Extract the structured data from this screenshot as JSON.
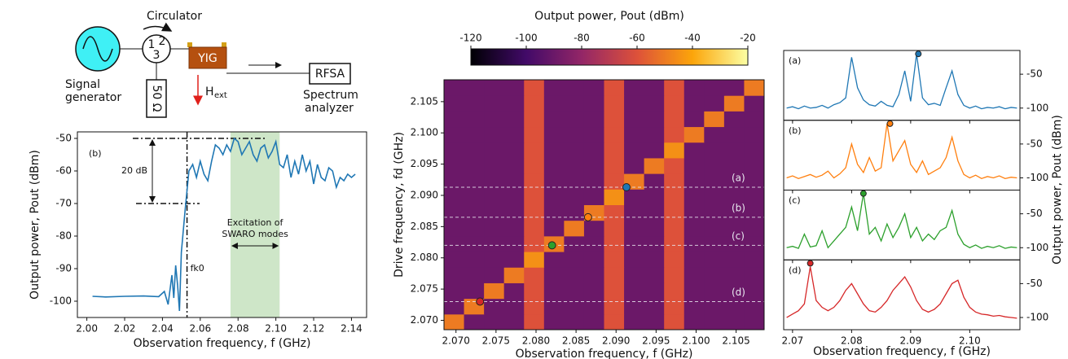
{
  "diagram": {
    "circulator": "Circulator",
    "signal_1": "Signal",
    "signal_2": "generator",
    "port_1": "1",
    "port_2": "2",
    "port_3": "3",
    "yig": "YIG",
    "load": "50 Ω",
    "field": "H",
    "field_sub": "ext",
    "rfsa": "RFSA",
    "analyzer_1": "Spectrum",
    "analyzer_2": "analyzer"
  },
  "chart_data": [
    {
      "type": "line",
      "panel_label": "(b)",
      "xlabel": "Observation frequency, f (GHz)",
      "ylabel": "Output power, Pout (dBm)",
      "xlim": [
        1.995,
        2.148
      ],
      "ylim": [
        -105,
        -48
      ],
      "xticks": [
        {
          "value": 2.0,
          "label": "2.00"
        },
        2.02,
        2.04,
        2.06,
        2.08,
        {
          "value": 2.1,
          "label": "2.10"
        },
        2.12,
        2.14
      ],
      "yticks": [
        -100,
        -90,
        -80,
        -70,
        -60,
        -50
      ],
      "color": "#1f77b4",
      "x": [
        2.003,
        2.01,
        2.02,
        2.03,
        2.038,
        2.041,
        2.043,
        2.045,
        2.046,
        2.047,
        2.048,
        2.049,
        2.05,
        2.052,
        2.054,
        2.056,
        2.058,
        2.06,
        2.062,
        2.064,
        2.066,
        2.068,
        2.07,
        2.072,
        2.074,
        2.076,
        2.078,
        2.08,
        2.082,
        2.084,
        2.086,
        2.088,
        2.09,
        2.092,
        2.094,
        2.096,
        2.098,
        2.1,
        2.102,
        2.104,
        2.106,
        2.108,
        2.11,
        2.112,
        2.114,
        2.116,
        2.118,
        2.12,
        2.122,
        2.124,
        2.126,
        2.128,
        2.13,
        2.132,
        2.134,
        2.136,
        2.138,
        2.14,
        2.142
      ],
      "values": [
        -98.5,
        -98.7,
        -98.5,
        -98.4,
        -98.6,
        -97,
        -101,
        -92,
        -99,
        -89,
        -95,
        -103,
        -85,
        -72,
        -60,
        -58,
        -62,
        -57,
        -61,
        -63,
        -57,
        -52,
        -53,
        -55,
        -52,
        -54,
        -50,
        -51,
        -55,
        -53,
        -51,
        -55,
        -57,
        -53,
        -52,
        -56,
        -54,
        -51,
        -58,
        -59,
        -55,
        -62,
        -57,
        -61,
        -55,
        -60,
        -57,
        -64,
        -58,
        -62,
        -63,
        -59,
        -60,
        -65,
        -62,
        -63,
        -61,
        -62,
        -61
      ],
      "shaded_region": [
        2.076,
        2.102
      ],
      "shade_color": "#b9dcb1",
      "vline": 2.053,
      "hlines": [
        -50,
        -70
      ],
      "gain_label": "20 dB",
      "region_label_1": "Excitation of",
      "region_label_2": "SWARO modes",
      "cutoff_label": "fk0"
    },
    {
      "type": "heatmap",
      "xlabel": "Observation frequency, f (GHz)",
      "ylabel": "Drive frequency, fd (GHz)",
      "xlim": [
        2.0685,
        2.1085
      ],
      "ylim": [
        2.0685,
        2.1085
      ],
      "xticks": [
        {
          "value": 2.07,
          "label": "2.070"
        },
        2.075,
        {
          "value": 2.08,
          "label": "2.080"
        },
        2.085,
        {
          "value": 2.09,
          "label": "2.090"
        },
        2.095,
        {
          "value": 2.1,
          "label": "2.100"
        },
        2.105
      ],
      "yticks": [
        {
          "value": 2.07,
          "label": "2.070"
        },
        2.075,
        {
          "value": 2.08,
          "label": "2.080"
        },
        2.085,
        {
          "value": 2.09,
          "label": "2.090"
        },
        2.095,
        {
          "value": 2.1,
          "label": "2.100"
        },
        2.105
      ],
      "clabel": "Output power, Pout (dBm)",
      "clim": [
        -120,
        -20
      ],
      "cticks": [
        -120,
        -100,
        -80,
        -60,
        -40,
        -20
      ],
      "colormap": [
        "#000004",
        "#420a68",
        "#932667",
        "#dd513a",
        "#fca50a",
        "#fcffa4"
      ],
      "z": [
        [
          -50,
          -90,
          -90,
          -90,
          -60,
          -90,
          -90,
          -90,
          -60,
          -90,
          -90,
          -60,
          -90,
          -90,
          -90,
          -90
        ],
        [
          -90,
          -50,
          -90,
          -90,
          -60,
          -90,
          -90,
          -90,
          -60,
          -90,
          -90,
          -60,
          -90,
          -90,
          -90,
          -90
        ],
        [
          -90,
          -90,
          -50,
          -90,
          -60,
          -90,
          -90,
          -90,
          -60,
          -90,
          -90,
          -60,
          -90,
          -90,
          -90,
          -90
        ],
        [
          -90,
          -90,
          -90,
          -50,
          -60,
          -90,
          -90,
          -90,
          -60,
          -90,
          -90,
          -60,
          -90,
          -90,
          -90,
          -90
        ],
        [
          -90,
          -90,
          -90,
          -90,
          -45,
          -90,
          -90,
          -90,
          -60,
          -90,
          -90,
          -60,
          -90,
          -90,
          -90,
          -90
        ],
        [
          -90,
          -90,
          -90,
          -90,
          -60,
          -50,
          -90,
          -90,
          -60,
          -90,
          -90,
          -60,
          -90,
          -90,
          -90,
          -90
        ],
        [
          -90,
          -90,
          -90,
          -90,
          -60,
          -90,
          -50,
          -90,
          -60,
          -90,
          -90,
          -60,
          -90,
          -90,
          -90,
          -90
        ],
        [
          -90,
          -90,
          -90,
          -90,
          -60,
          -90,
          -90,
          -50,
          -60,
          -90,
          -90,
          -60,
          -90,
          -90,
          -90,
          -90
        ],
        [
          -90,
          -90,
          -90,
          -90,
          -60,
          -90,
          -90,
          -90,
          -45,
          -90,
          -90,
          -60,
          -90,
          -90,
          -90,
          -90
        ],
        [
          -90,
          -90,
          -90,
          -90,
          -60,
          -90,
          -90,
          -90,
          -60,
          -50,
          -90,
          -60,
          -90,
          -90,
          -90,
          -90
        ],
        [
          -90,
          -90,
          -90,
          -90,
          -60,
          -90,
          -90,
          -90,
          -60,
          -90,
          -50,
          -60,
          -90,
          -90,
          -90,
          -90
        ],
        [
          -90,
          -90,
          -90,
          -90,
          -60,
          -90,
          -90,
          -90,
          -60,
          -90,
          -90,
          -45,
          -90,
          -90,
          -90,
          -90
        ],
        [
          -90,
          -90,
          -90,
          -90,
          -60,
          -90,
          -90,
          -90,
          -60,
          -90,
          -90,
          -60,
          -50,
          -90,
          -90,
          -90
        ],
        [
          -90,
          -90,
          -90,
          -90,
          -60,
          -90,
          -90,
          -90,
          -60,
          -90,
          -90,
          -60,
          -90,
          -50,
          -90,
          -90
        ],
        [
          -90,
          -90,
          -90,
          -90,
          -60,
          -90,
          -90,
          -90,
          -60,
          -90,
          -90,
          -60,
          -90,
          -90,
          -50,
          -90
        ],
        [
          -90,
          -90,
          -90,
          -90,
          -60,
          -90,
          -90,
          -90,
          -60,
          -90,
          -90,
          -60,
          -90,
          -90,
          -90,
          -50
        ]
      ],
      "cuts": [
        {
          "label": "(a)",
          "x": 2.0913,
          "y": 2.0913,
          "color": "#1f77b4"
        },
        {
          "label": "(b)",
          "x": 2.0865,
          "y": 2.0865,
          "color": "#ff7f0e"
        },
        {
          "label": "(c)",
          "x": 2.082,
          "y": 2.082,
          "color": "#2ca02c"
        },
        {
          "label": "(d)",
          "x": 2.073,
          "y": 2.073,
          "color": "#d62728"
        }
      ]
    },
    {
      "type": "panels",
      "xlabel": "Observation frequency, f (GHz)",
      "ylabel": "Output power, Pout (dBm)",
      "xlim": [
        2.0685,
        2.1085
      ],
      "ylim": [
        -118,
        -15
      ],
      "xticks": [
        2.07,
        2.08,
        2.09,
        {
          "value": 2.1,
          "label": "2.10"
        }
      ],
      "yticks": [
        -50,
        -100
      ],
      "x": [
        2.069,
        2.07,
        2.071,
        2.072,
        2.073,
        2.074,
        2.075,
        2.076,
        2.077,
        2.078,
        2.079,
        2.08,
        2.081,
        2.082,
        2.083,
        2.084,
        2.085,
        2.086,
        2.087,
        2.088,
        2.089,
        2.09,
        2.091,
        2.092,
        2.093,
        2.094,
        2.095,
        2.096,
        2.097,
        2.098,
        2.099,
        2.1,
        2.101,
        2.102,
        2.103,
        2.104,
        2.105,
        2.106,
        2.107,
        2.108
      ],
      "series": [
        {
          "name": "(a)",
          "color": "#1f77b4",
          "marker": {
            "x": 2.0913,
            "y": -20
          },
          "values": [
            -100,
            -98,
            -101,
            -97,
            -100,
            -99,
            -96,
            -100,
            -95,
            -92,
            -85,
            -25,
            -70,
            -88,
            -95,
            -97,
            -90,
            -96,
            -98,
            -80,
            -45,
            -90,
            -20,
            -85,
            -95,
            -93,
            -96,
            -70,
            -45,
            -80,
            -96,
            -100,
            -97,
            -101,
            -99,
            -100,
            -98,
            -101,
            -99,
            -100
          ]
        },
        {
          "name": "(b)",
          "color": "#ff7f0e",
          "marker": {
            "x": 2.0865,
            "y": -20
          },
          "values": [
            -100,
            -97,
            -101,
            -98,
            -95,
            -99,
            -96,
            -90,
            -100,
            -94,
            -85,
            -50,
            -80,
            -92,
            -70,
            -90,
            -85,
            -20,
            -75,
            -60,
            -45,
            -80,
            -92,
            -75,
            -95,
            -90,
            -85,
            -70,
            -40,
            -75,
            -95,
            -100,
            -96,
            -101,
            -98,
            -100,
            -97,
            -101,
            -99,
            -100
          ]
        },
        {
          "name": "(c)",
          "color": "#2ca02c",
          "marker": {
            "x": 2.082,
            "y": -20
          },
          "values": [
            -100,
            -98,
            -101,
            -80,
            -99,
            -97,
            -75,
            -100,
            -90,
            -80,
            -70,
            -40,
            -75,
            -20,
            -80,
            -70,
            -90,
            -65,
            -85,
            -70,
            -50,
            -85,
            -70,
            -90,
            -80,
            -88,
            -75,
            -70,
            -45,
            -80,
            -95,
            -100,
            -96,
            -101,
            -98,
            -100,
            -97,
            -101,
            -99,
            -100
          ]
        },
        {
          "name": "(d)",
          "color": "#d62728",
          "marker": {
            "x": 2.073,
            "y": -20
          },
          "values": [
            -100,
            -95,
            -90,
            -80,
            -25,
            -75,
            -85,
            -90,
            -85,
            -75,
            -60,
            -50,
            -65,
            -80,
            -90,
            -92,
            -85,
            -75,
            -60,
            -50,
            -40,
            -55,
            -75,
            -88,
            -92,
            -88,
            -80,
            -65,
            -50,
            -45,
            -70,
            -85,
            -92,
            -95,
            -96,
            -98,
            -97,
            -99,
            -100,
            -101
          ]
        }
      ]
    }
  ]
}
